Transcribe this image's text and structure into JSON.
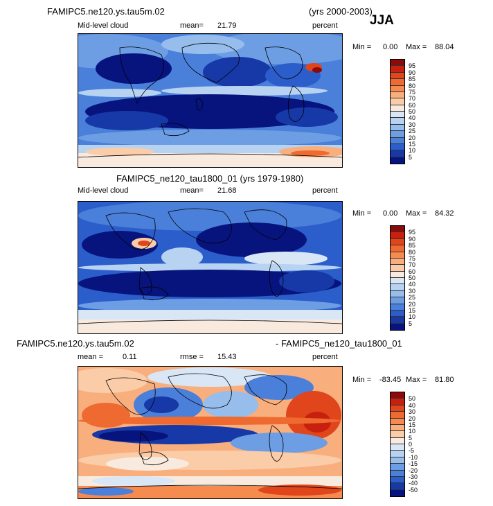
{
  "season": "JJA",
  "panel1": {
    "case": "FAMIPC5.ne120.ys.tau5m.02",
    "years": "(yrs 2000-2003)",
    "field": "Mid-level cloud",
    "mean_label": "mean=",
    "mean": "21.79",
    "units": "percent",
    "min_label": "Min =",
    "min": "0.00",
    "max_label": "Max =",
    "max": "88.04"
  },
  "panel2": {
    "title": "FAMIPC5_ne120_tau1800_01 (yrs 1979-1980)",
    "field": "Mid-level cloud",
    "mean_label": "mean=",
    "mean": "21.68",
    "units": "percent",
    "min_label": "Min =",
    "min": "0.00",
    "max_label": "Max =",
    "max": "84.32"
  },
  "panel3": {
    "case_a": "FAMIPC5.ne120.ys.tau5m.02",
    "case_b": "- FAMIPC5_ne120_tau1800_01",
    "mean_label": "mean =",
    "mean": "0.11",
    "rmse_label": "rmse =",
    "rmse": "15.43",
    "units": "percent",
    "min_label": "Min =",
    "min": "-83.45",
    "max_label": "Max =",
    "max": "81.80"
  },
  "chart_data": [
    {
      "type": "heatmap",
      "title": "FAMIPC5.ne120.ys.tau5m.02 (yrs 2000-2003) JJA",
      "variable": "Mid-level cloud",
      "units": "percent",
      "mean": 21.79,
      "min": 0.0,
      "max": 88.04,
      "colorbar_levels": [
        "95",
        "90",
        "85",
        "80",
        "75",
        "70",
        "60",
        "50",
        "40",
        "30",
        "25",
        "20",
        "15",
        "10",
        "5"
      ],
      "colorbar_colors": [
        "#8b0a0a",
        "#c8200e",
        "#e0451c",
        "#ee6a30",
        "#f68b50",
        "#f9ae7d",
        "#fbcca8",
        "#f8eadf",
        "#d8e6f6",
        "#b8d3f2",
        "#96bdec",
        "#6d9ee4",
        "#4a7fda",
        "#2c5ecb",
        "#1739a8",
        "#08147e"
      ]
    },
    {
      "type": "heatmap",
      "title": "FAMIPC5_ne120_tau1800_01 (yrs 1979-1980)",
      "variable": "Mid-level cloud",
      "units": "percent",
      "mean": 21.68,
      "min": 0.0,
      "max": 84.32,
      "colorbar_levels": [
        "95",
        "90",
        "85",
        "80",
        "75",
        "70",
        "60",
        "50",
        "40",
        "30",
        "25",
        "20",
        "15",
        "10",
        "5"
      ],
      "colorbar_colors": [
        "#8b0a0a",
        "#c8200e",
        "#e0451c",
        "#ee6a30",
        "#f68b50",
        "#f9ae7d",
        "#fbcca8",
        "#f8eadf",
        "#d8e6f6",
        "#b8d3f2",
        "#96bdec",
        "#6d9ee4",
        "#4a7fda",
        "#2c5ecb",
        "#1739a8",
        "#08147e"
      ]
    },
    {
      "type": "heatmap",
      "title": "FAMIPC5.ne120.ys.tau5m.02 - FAMIPC5_ne120_tau1800_01",
      "variable": "Mid-level cloud difference",
      "units": "percent",
      "mean": 0.11,
      "rmse": 15.43,
      "min": -83.45,
      "max": 81.8,
      "colorbar_levels": [
        "50",
        "40",
        "30",
        "20",
        "15",
        "10",
        "5",
        "0",
        "-5",
        "-10",
        "-15",
        "-20",
        "-30",
        "-40",
        "-50"
      ],
      "colorbar_colors": [
        "#8b0a0a",
        "#c8200e",
        "#e0451c",
        "#ee6a30",
        "#f68b50",
        "#f9ae7d",
        "#fbcca8",
        "#f8eadf",
        "#d8e6f6",
        "#b8d3f2",
        "#96bdec",
        "#6d9ee4",
        "#4a7fda",
        "#2c5ecb",
        "#1739a8",
        "#08147e"
      ]
    }
  ]
}
